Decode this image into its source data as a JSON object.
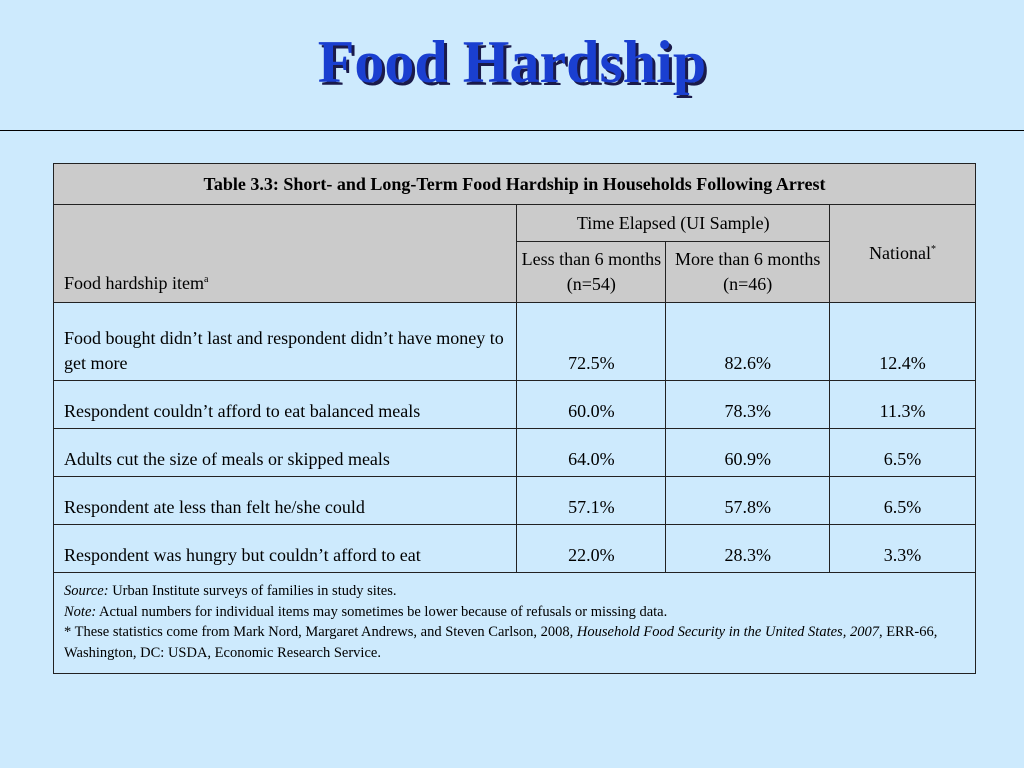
{
  "title": "Food Hardship",
  "table": {
    "caption": "Table 3.3: Short- and Long-Term Food Hardship in Households Following Arrest",
    "item_header": "Food hardship item",
    "item_header_sup": "a",
    "group_header": "Time Elapsed (UI Sample)",
    "col_short": "Less than 6 months (n=54)",
    "col_long": "More than 6 months (n=46)",
    "col_national": "National",
    "col_national_sup": "*",
    "rows": [
      {
        "item": "Food bought didn’t last and respondent didn’t have money to get more",
        "short": "72.5%",
        "long": "82.6%",
        "national": "12.4%"
      },
      {
        "item": "Respondent couldn’t afford to eat balanced meals",
        "short": "60.0%",
        "long": "78.3%",
        "national": "11.3%"
      },
      {
        "item": "Adults cut the size of meals or skipped meals",
        "short": "64.0%",
        "long": "60.9%",
        "national": "6.5%"
      },
      {
        "item": "Respondent ate less than felt he/she could",
        "short": "57.1%",
        "long": "57.8%",
        "national": "6.5%"
      },
      {
        "item": "Respondent was hungry but couldn’t afford to eat",
        "short": "22.0%",
        "long": "28.3%",
        "national": "3.3%"
      }
    ],
    "notes": {
      "source_label": "Source:",
      "source_text": " Urban Institute surveys of families in study sites.",
      "note_label": "Note:",
      "note_text": " Actual numbers for individual items may sometimes be lower because of refusals or missing data.",
      "star_text": "* These statistics come from Mark Nord, Margaret Andrews, and Steven Carlson, 2008, ",
      "star_title": "Household Food Security in the United States, 2007",
      "star_tail": ", ERR-66, Washington, DC: USDA, Economic Research Service."
    }
  }
}
